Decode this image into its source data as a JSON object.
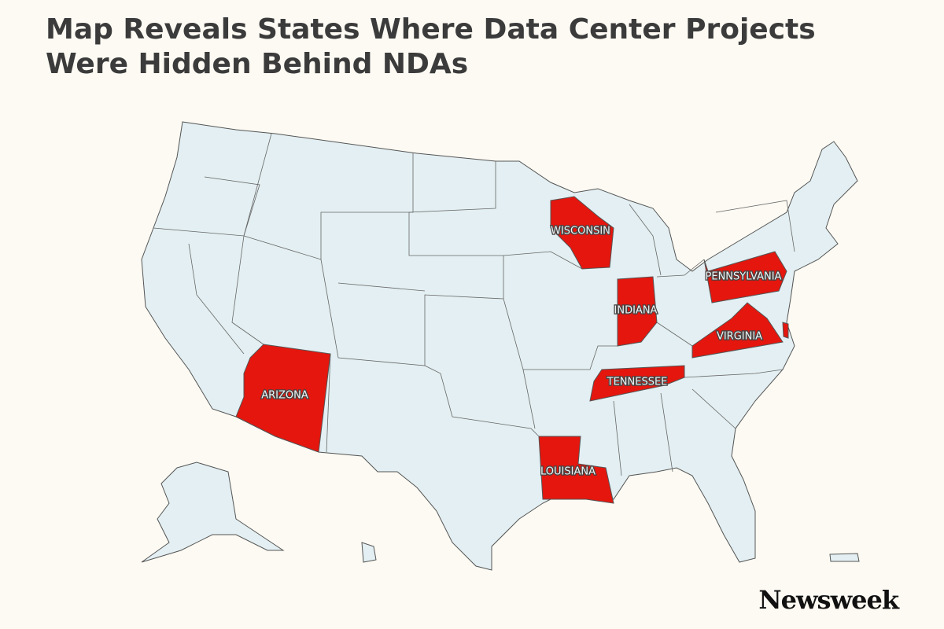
{
  "title": "Map Reveals States Where Data Center Projects Were Hidden Behind NDAs",
  "highlighted_states": [
    {
      "label": "WISCONSIN"
    },
    {
      "label": "INDIANA"
    },
    {
      "label": "PENNSYLVANIA"
    },
    {
      "label": "VIRGINIA"
    },
    {
      "label": "TENNESSEE"
    },
    {
      "label": "ARIZONA"
    },
    {
      "label": "LOUISIANA"
    }
  ],
  "brand": "Newsweek"
}
